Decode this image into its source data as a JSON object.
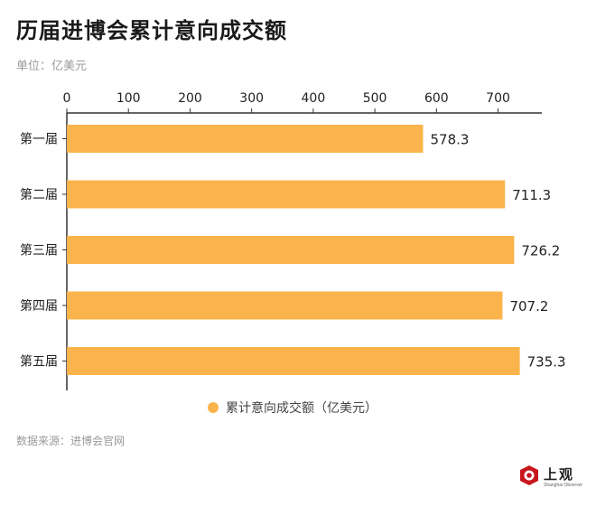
{
  "header": {
    "title": "历届进博会累计意向成交额",
    "unit": "单位：亿美元"
  },
  "footer": {
    "source": "数据来源：进博会官网",
    "brand_name": "上观",
    "brand_sub": "Shanghai Observer"
  },
  "colors": {
    "bar": "#FBB44C",
    "axis": "#333333"
  },
  "chart_data": {
    "type": "bar",
    "orientation": "horizontal",
    "categories": [
      "第一届",
      "第二届",
      "第三届",
      "第四届",
      "第五届"
    ],
    "series": [
      {
        "name": "累计意向成交额（亿美元）",
        "values": [
          578.3,
          711.3,
          726.2,
          707.2,
          735.3
        ]
      }
    ],
    "data_labels": [
      "578.3",
      "711.3",
      "726.2",
      "707.2",
      "735.3"
    ],
    "x_ticks": [
      0,
      100,
      200,
      300,
      400,
      500,
      600,
      700
    ],
    "xlim": [
      0,
      770
    ],
    "x_axis_position": "top",
    "grid": false,
    "legend_position": "bottom-center",
    "title": "历届进博会累计意向成交额",
    "xlabel": "",
    "ylabel": ""
  }
}
